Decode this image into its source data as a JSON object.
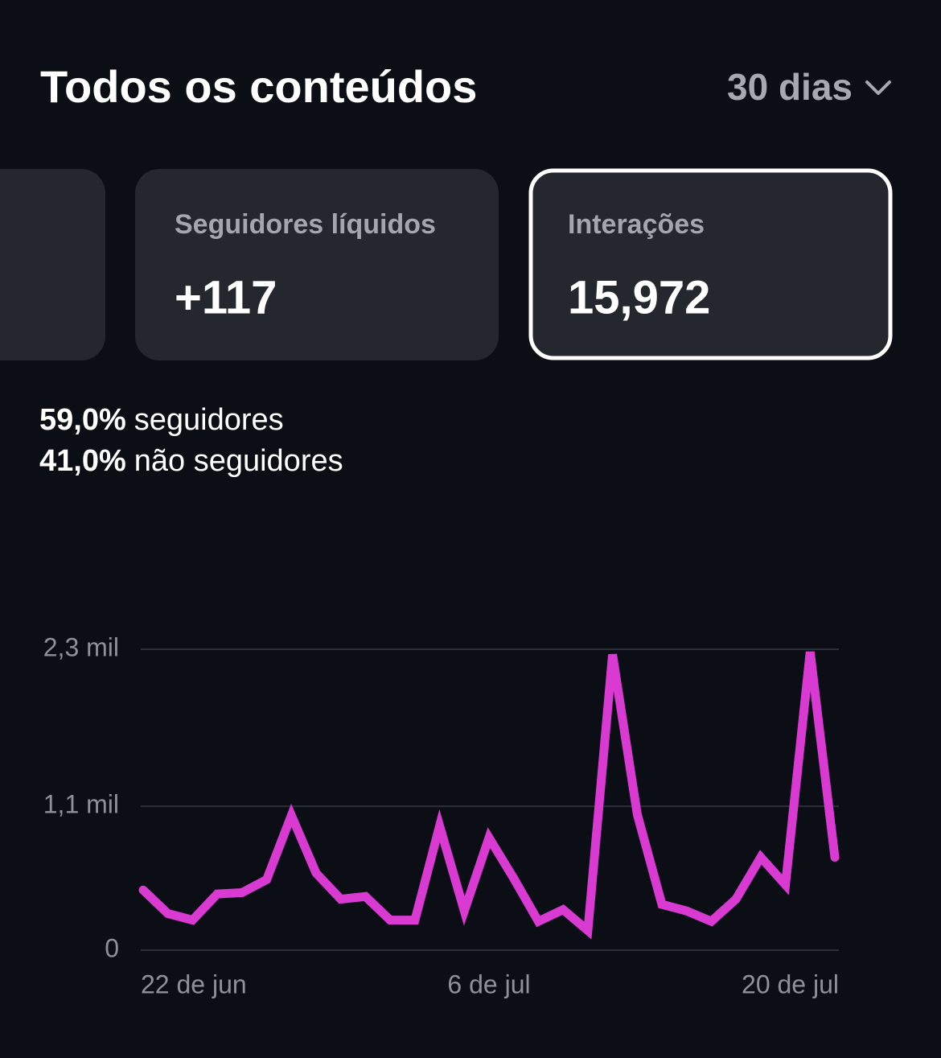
{
  "header": {
    "title": "Todos os conteúdos",
    "period": "30 dias"
  },
  "cards": [
    {
      "label": "Seguidores líquidos",
      "value": "+117"
    },
    {
      "label": "Interações",
      "value": "15,972"
    }
  ],
  "stats": [
    {
      "value": "59,0%",
      "label": "seguidores"
    },
    {
      "value": "41,0%",
      "label": "não seguidores"
    }
  ],
  "chart_data": {
    "type": "line",
    "color": "#d93bd2",
    "grid": true,
    "categories": [
      "22 de jun",
      null,
      null,
      null,
      null,
      null,
      null,
      null,
      null,
      null,
      null,
      null,
      null,
      null,
      "6 de jul",
      null,
      null,
      null,
      null,
      null,
      null,
      null,
      null,
      null,
      null,
      null,
      null,
      null,
      "20 de jul"
    ],
    "values": [
      460,
      280,
      230,
      430,
      440,
      540,
      1030,
      590,
      390,
      410,
      230,
      230,
      950,
      300,
      860,
      550,
      220,
      310,
      150,
      2260,
      1040,
      350,
      300,
      220,
      390,
      710,
      500,
      2280,
      710
    ],
    "ylim": [
      0,
      2300
    ],
    "yticks": [
      0,
      {
        "value": 1100,
        "label": "1,1 mil"
      },
      {
        "value": 2300,
        "label": "2,3 mil"
      }
    ]
  }
}
